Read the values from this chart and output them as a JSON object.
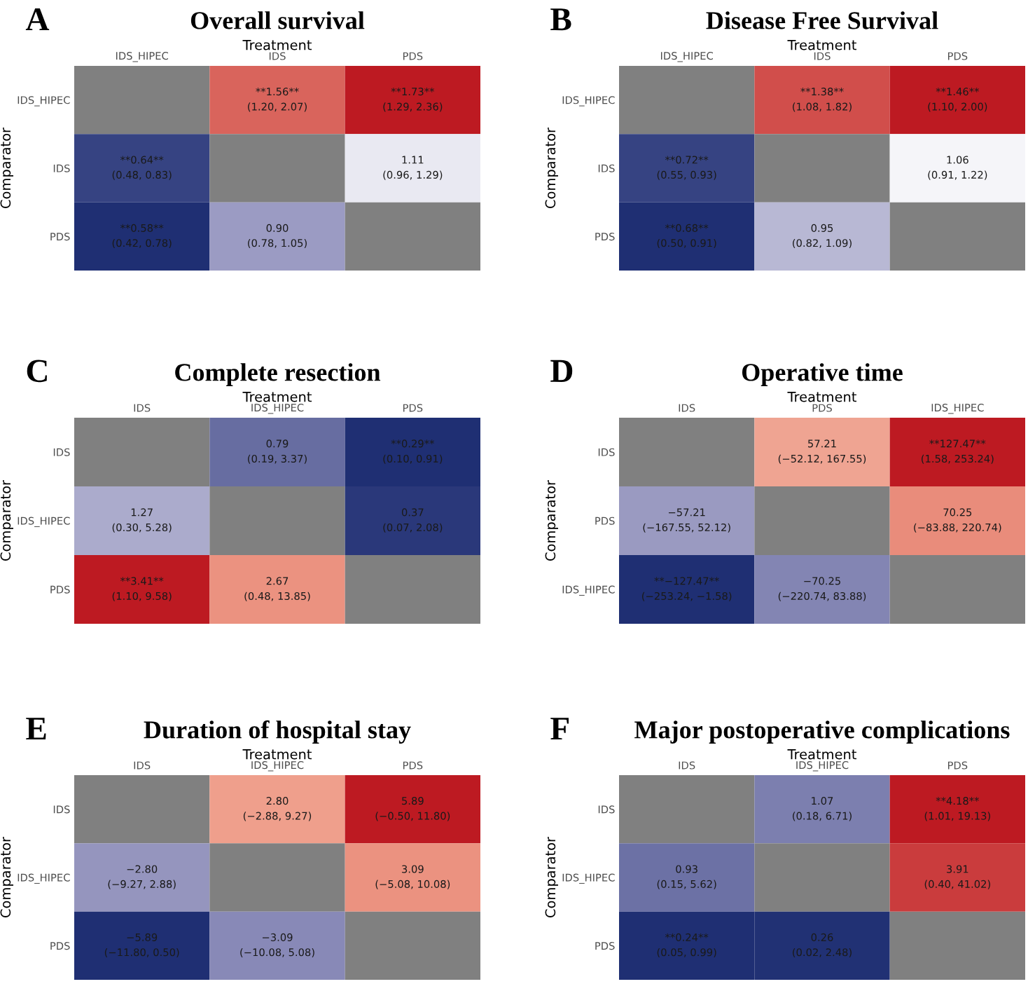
{
  "chart_data": [
    {
      "type": "heatmap",
      "title": "Overall survival",
      "xlabel": "Treatment",
      "ylabel": "Comparator",
      "categories": [
        "IDS_HIPEC",
        "IDS",
        "PDS"
      ],
      "y_categories": [
        "IDS_HIPEC",
        "IDS",
        "PDS"
      ],
      "cells": [
        [
          null,
          1.56,
          1.73
        ],
        [
          0.64,
          null,
          1.11
        ],
        [
          0.58,
          0.9,
          null
        ]
      ],
      "cell_labels": [
        [
          null,
          "**1.56**",
          "**1.73**"
        ],
        [
          "**0.64**",
          null,
          "1.11"
        ],
        [
          "**0.58**",
          "0.90",
          null
        ]
      ],
      "annotations": [
        "A",
        "(1.20, 2.07)",
        "(1.29, 2.36)",
        "(0.48, 0.83)",
        "(0.96, 1.29)",
        "(0.42, 0.78)",
        "(0.78, 1.05)"
      ]
    },
    {
      "type": "heatmap",
      "title": "Disease Free Survival",
      "xlabel": "Treatment",
      "ylabel": "Comparator",
      "categories": [
        "IDS_HIPEC",
        "IDS",
        "PDS"
      ],
      "y_categories": [
        "IDS_HIPEC",
        "IDS",
        "PDS"
      ],
      "cells": [
        [
          null,
          1.38,
          1.46
        ],
        [
          0.72,
          null,
          1.06
        ],
        [
          0.68,
          0.95,
          null
        ]
      ],
      "cell_labels": [
        [
          null,
          "**1.38**",
          "**1.46**"
        ],
        [
          "**0.72**",
          null,
          "1.06"
        ],
        [
          "**0.68**",
          "0.95",
          null
        ]
      ],
      "annotations": [
        "B",
        "(1.08, 1.82)",
        "(1.10, 2.00)",
        "(0.55, 0.93)",
        "(0.91, 1.22)",
        "(0.50, 0.91)",
        "(0.82, 1.09)"
      ]
    },
    {
      "type": "heatmap",
      "title": "Complete resection",
      "xlabel": "Treatment",
      "ylabel": "Comparator",
      "categories": [
        "IDS",
        "IDS_HIPEC",
        "PDS"
      ],
      "y_categories": [
        "IDS",
        "IDS_HIPEC",
        "PDS"
      ],
      "cells": [
        [
          null,
          0.79,
          0.29
        ],
        [
          1.27,
          null,
          0.37
        ],
        [
          3.41,
          2.67,
          null
        ]
      ],
      "cell_labels": [
        [
          null,
          "0.79",
          "**0.29**"
        ],
        [
          "1.27",
          null,
          "0.37"
        ],
        [
          "**3.41**",
          "2.67",
          null
        ]
      ],
      "annotations": [
        "C",
        "(0.19, 3.37)",
        "(0.10, 0.91)",
        "(0.30, 5.28)",
        "(0.07, 2.08)",
        "(1.10, 9.58)",
        "(0.48, 13.85)"
      ]
    },
    {
      "type": "heatmap",
      "title": "Operative time",
      "xlabel": "Treatment",
      "ylabel": "Comparator",
      "categories": [
        "IDS",
        "PDS",
        "IDS_HIPEC"
      ],
      "y_categories": [
        "IDS",
        "PDS",
        "IDS_HIPEC"
      ],
      "cells": [
        [
          null,
          57.21,
          127.47
        ],
        [
          -57.21,
          null,
          70.25
        ],
        [
          -127.47,
          -70.25,
          null
        ]
      ],
      "cell_labels": [
        [
          null,
          "57.21",
          "**127.47**"
        ],
        [
          "−57.21",
          null,
          "70.25"
        ],
        [
          "**−127.47**",
          "−70.25",
          null
        ]
      ],
      "annotations": [
        "D",
        "(−52.12, 167.55)",
        "(1.58, 253.24)",
        "(−167.55, 52.12)",
        "(−83.88, 220.74)",
        "(−253.24, −1.58)",
        "(−220.74, 83.88)"
      ]
    },
    {
      "type": "heatmap",
      "title": "Duration of hospital stay",
      "xlabel": "Treatment",
      "ylabel": "Comparator",
      "categories": [
        "IDS",
        "IDS_HIPEC",
        "PDS"
      ],
      "y_categories": [
        "IDS",
        "IDS_HIPEC",
        "PDS"
      ],
      "cells": [
        [
          null,
          2.8,
          5.89
        ],
        [
          -2.8,
          null,
          3.09
        ],
        [
          -5.89,
          -3.09,
          null
        ]
      ],
      "cell_labels": [
        [
          null,
          "2.80",
          "5.89"
        ],
        [
          "−2.80",
          null,
          "3.09"
        ],
        [
          "−5.89",
          "−3.09",
          null
        ]
      ],
      "annotations": [
        "E",
        "(−2.88, 9.27)",
        "(−0.50, 11.80)",
        "(−9.27, 2.88)",
        "(−5.08, 10.08)",
        "(−11.80, 0.50)",
        "(−10.08, 5.08)"
      ]
    },
    {
      "type": "heatmap",
      "title": "Major postoperative complications",
      "xlabel": "Treatment",
      "ylabel": "Comparator",
      "categories": [
        "IDS",
        "IDS_HIPEC",
        "PDS"
      ],
      "y_categories": [
        "IDS",
        "IDS_HIPEC",
        "PDS"
      ],
      "cells": [
        [
          null,
          1.07,
          4.18
        ],
        [
          0.93,
          null,
          3.91
        ],
        [
          0.24,
          0.26,
          null
        ]
      ],
      "cell_labels": [
        [
          null,
          "1.07",
          "**4.18**"
        ],
        [
          "0.93",
          null,
          "3.91"
        ],
        [
          "**0.24**",
          "0.26",
          null
        ]
      ],
      "annotations": [
        "F",
        "(0.18, 6.71)",
        "(1.01, 19.13)",
        "(0.15, 5.62)",
        "(0.40, 41.02)",
        "(0.05, 0.99)",
        "(0.02, 2.48)"
      ]
    }
  ]
}
